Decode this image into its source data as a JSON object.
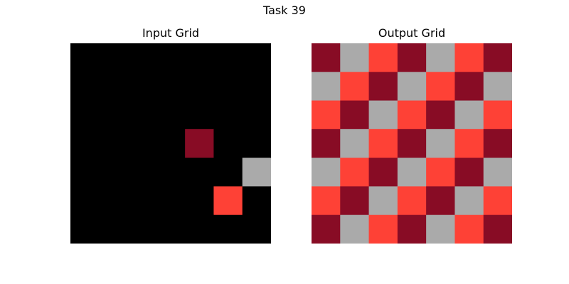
{
  "title": "Task 39",
  "palette": {
    "0": "#000000",
    "1": "#880c25",
    "2": "#aaaaaa",
    "3": "#fe4136"
  },
  "panels": [
    {
      "title": "Input Grid",
      "cells": [
        [
          0,
          0,
          0,
          0,
          0,
          0,
          0
        ],
        [
          0,
          0,
          0,
          0,
          0,
          0,
          0
        ],
        [
          0,
          0,
          0,
          0,
          0,
          0,
          0
        ],
        [
          0,
          0,
          0,
          0,
          1,
          0,
          0
        ],
        [
          0,
          0,
          0,
          0,
          0,
          0,
          2
        ],
        [
          0,
          0,
          0,
          0,
          0,
          3,
          0
        ],
        [
          0,
          0,
          0,
          0,
          0,
          0,
          0
        ]
      ]
    },
    {
      "title": "Output Grid",
      "cells": [
        [
          1,
          2,
          3,
          1,
          2,
          3,
          1
        ],
        [
          2,
          3,
          1,
          2,
          3,
          1,
          2
        ],
        [
          3,
          1,
          2,
          3,
          1,
          2,
          3
        ],
        [
          1,
          2,
          3,
          1,
          2,
          3,
          1
        ],
        [
          2,
          3,
          1,
          2,
          3,
          1,
          2
        ],
        [
          3,
          1,
          2,
          3,
          1,
          2,
          3
        ],
        [
          1,
          2,
          3,
          1,
          2,
          3,
          1
        ]
      ]
    }
  ]
}
